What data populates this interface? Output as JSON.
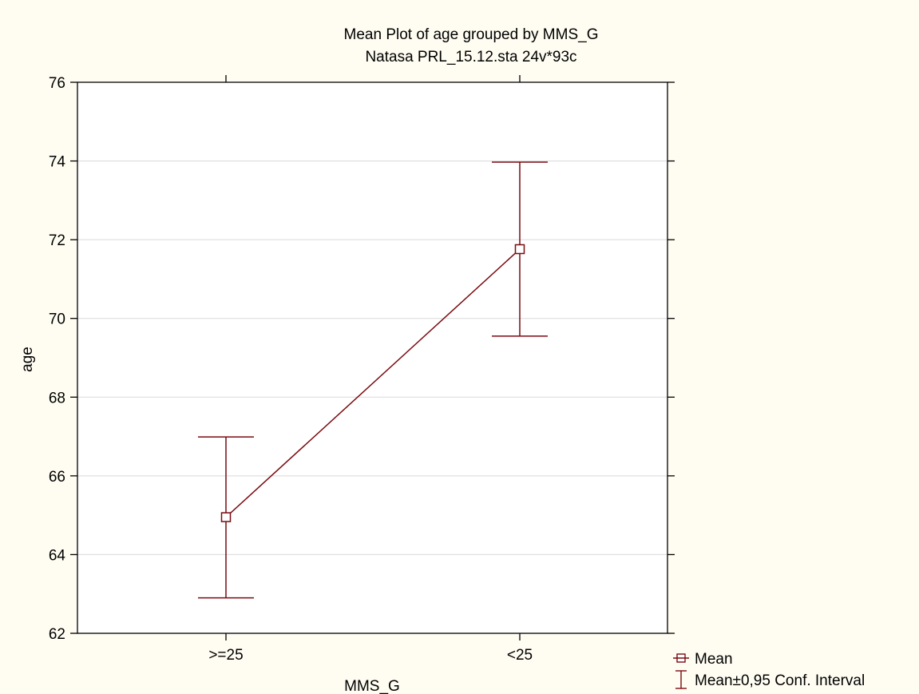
{
  "chart_data": {
    "type": "line",
    "title": "Mean Plot of age grouped by  MMS_G",
    "subtitle": "Natasa PRL_15.12.sta 24v*93c",
    "xlabel": "MMS_G",
    "ylabel": "age",
    "categories": [
      ">=25",
      "<25"
    ],
    "ylim": [
      62,
      76
    ],
    "yticks": [
      62,
      64,
      66,
      68,
      70,
      72,
      74,
      76
    ],
    "grid": true,
    "legend_position": "bottom-right",
    "series": [
      {
        "name": "Mean",
        "values": [
          64.95,
          71.76
        ],
        "ci_lower": [
          62.9,
          69.55
        ],
        "ci_upper": [
          66.99,
          73.97
        ]
      }
    ],
    "legend": {
      "mean_label": "Mean",
      "ci_label": "Mean±0,95 Conf. Interval"
    },
    "colors": {
      "series": "#7a0a10",
      "grid": "#d9d9d9",
      "background": "#fffdf2",
      "plot_bg": "#ffffff"
    }
  }
}
